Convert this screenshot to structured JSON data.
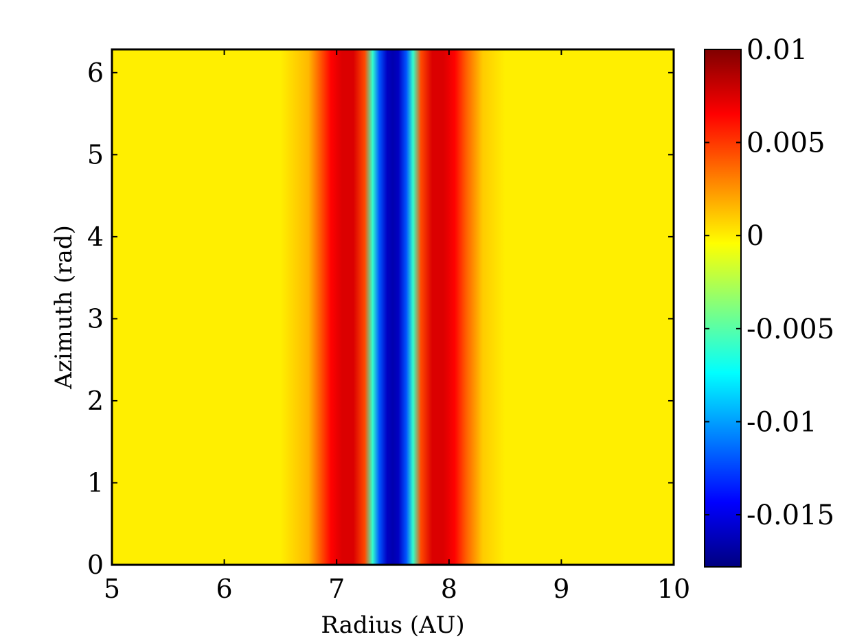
{
  "chart_data": {
    "type": "heatmap",
    "xlabel": "Radius (AU)",
    "ylabel": "Azimuth (rad)",
    "xlim": [
      5,
      10
    ],
    "ylim": [
      0,
      6.283
    ],
    "x_ticks": [
      "5",
      "6",
      "7",
      "8",
      "9",
      "10"
    ],
    "y_ticks": [
      "0",
      "1",
      "2",
      "3",
      "4",
      "5",
      "6"
    ],
    "colorbar": {
      "colormap": "jet",
      "range": [
        -0.0178,
        0.01
      ],
      "ticks": [
        "0.01",
        "0.005",
        "0",
        "-0.005",
        "-0.01",
        "-0.015"
      ]
    },
    "profile": {
      "description_axis": "value varies with radius only, constant in azimuth",
      "radius": [
        5.0,
        6.5,
        6.75,
        6.85,
        6.95,
        7.05,
        7.15,
        7.25,
        7.32,
        7.38,
        7.45,
        7.5,
        7.55,
        7.62,
        7.68,
        7.75,
        7.85,
        7.95,
        8.05,
        8.15,
        8.3,
        8.5,
        10.0
      ],
      "value": [
        0.0,
        0.0,
        0.0015,
        0.004,
        0.0065,
        0.0075,
        0.0075,
        0.0045,
        -0.006,
        -0.012,
        -0.016,
        -0.0165,
        -0.016,
        -0.012,
        -0.006,
        0.0045,
        0.0075,
        0.0075,
        0.0065,
        0.004,
        0.001,
        0.0,
        0.0
      ]
    }
  }
}
